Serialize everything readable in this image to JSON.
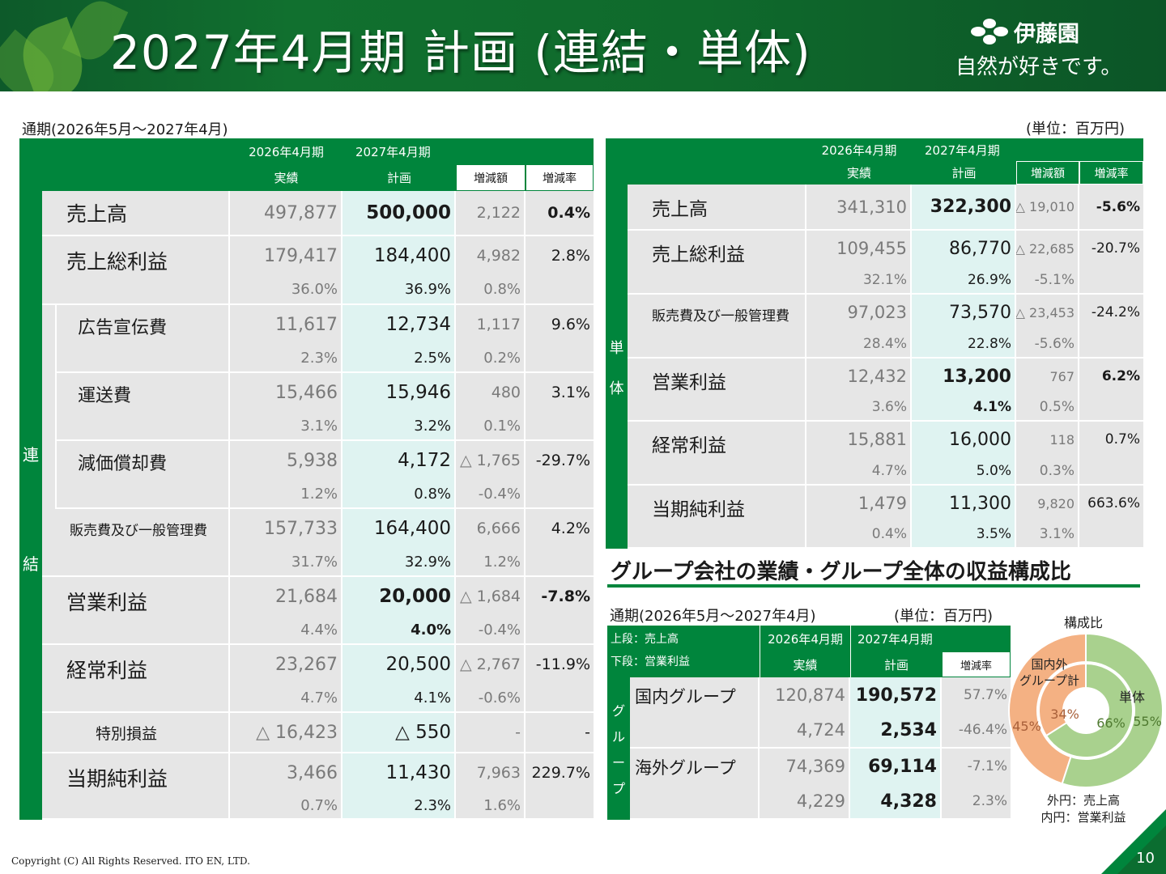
{
  "header": {
    "title": "2027年4月期 計画 (連結・単体)",
    "logo_name": "伊藤園",
    "logo_tagline": "自然が好きです。"
  },
  "left": {
    "period": "通期(2026年5月～2027年4月)",
    "h1a": "2026年4月期",
    "h1b": "実績",
    "h2a": "2027年4月期",
    "h2b": "計画",
    "h3": "増減額",
    "h4": "増減率",
    "side1": "連",
    "side2": "結",
    "rows": [
      {
        "label": "売上高",
        "a": "497,877",
        "p": "500,000",
        "d": "2,122",
        "r": "0.4%",
        "a2": "",
        "p2": "",
        "d2": ""
      },
      {
        "label": "売上総利益",
        "a": "179,417",
        "p": "184,400",
        "d": "4,982",
        "r": "2.8%",
        "a2": "36.0%",
        "p2": "36.9%",
        "d2": "0.8%"
      },
      {
        "label": "広告宣伝費",
        "a": "11,617",
        "p": "12,734",
        "d": "1,117",
        "r": "9.6%",
        "a2": "2.3%",
        "p2": "2.5%",
        "d2": "0.2%"
      },
      {
        "label": "運送費",
        "a": "15,466",
        "p": "15,946",
        "d": "480",
        "r": "3.1%",
        "a2": "3.1%",
        "p2": "3.2%",
        "d2": "0.1%"
      },
      {
        "label": "減価償却費",
        "a": "5,938",
        "p": "4,172",
        "d": "△ 1,765",
        "r": "-29.7%",
        "a2": "1.2%",
        "p2": "0.8%",
        "d2": "-0.4%"
      },
      {
        "label": "販売費及び一般管理費",
        "a": "157,733",
        "p": "164,400",
        "d": "6,666",
        "r": "4.2%",
        "a2": "31.7%",
        "p2": "32.9%",
        "d2": "1.2%"
      },
      {
        "label": "営業利益",
        "a": "21,684",
        "p": "20,000",
        "d": "△ 1,684",
        "r": "-7.8%",
        "a2": "4.4%",
        "p2": "4.0%",
        "d2": "-0.4%"
      },
      {
        "label": "経常利益",
        "a": "23,267",
        "p": "20,500",
        "d": "△ 2,767",
        "r": "-11.9%",
        "a2": "4.7%",
        "p2": "4.1%",
        "d2": "-0.6%"
      },
      {
        "label": "特別損益",
        "a": "△ 16,423",
        "p": "△ 550",
        "d": "-",
        "r": "-",
        "a2": "",
        "p2": "",
        "d2": ""
      },
      {
        "label": "当期純利益",
        "a": "3,466",
        "p": "11,430",
        "d": "7,963",
        "r": "229.7%",
        "a2": "0.7%",
        "p2": "2.3%",
        "d2": "1.6%"
      }
    ]
  },
  "right": {
    "unit": "(単位：百万円)",
    "h1a": "2026年4月期",
    "h1b": "実績",
    "h2a": "2027年4月期",
    "h2b": "計画",
    "h3": "増減額",
    "h4": "増減率",
    "side1": "単",
    "side2": "体",
    "rows": [
      {
        "label": "売上高",
        "a": "341,310",
        "p": "322,300",
        "d": "△ 19,010",
        "r": "-5.6%",
        "a2": "",
        "p2": "",
        "d2": ""
      },
      {
        "label": "売上総利益",
        "a": "109,455",
        "p": "86,770",
        "d": "△ 22,685",
        "r": "-20.7%",
        "a2": "32.1%",
        "p2": "26.9%",
        "d2": "-5.1%"
      },
      {
        "label": "販売費及び一般管理費",
        "a": "97,023",
        "p": "73,570",
        "d": "△ 23,453",
        "r": "-24.2%",
        "a2": "28.4%",
        "p2": "22.8%",
        "d2": "-5.6%"
      },
      {
        "label": "営業利益",
        "a": "12,432",
        "p": "13,200",
        "d": "767",
        "r": "6.2%",
        "a2": "3.6%",
        "p2": "4.1%",
        "d2": "0.5%"
      },
      {
        "label": "経常利益",
        "a": "15,881",
        "p": "16,000",
        "d": "118",
        "r": "0.7%",
        "a2": "4.7%",
        "p2": "5.0%",
        "d2": "0.3%"
      },
      {
        "label": "当期純利益",
        "a": "1,479",
        "p": "11,300",
        "d": "9,820",
        "r": "663.6%",
        "a2": "0.4%",
        "p2": "3.5%",
        "d2": "3.1%"
      }
    ]
  },
  "group": {
    "section_title": "グループ会社の業績・グループ全体の収益構成比",
    "period": "通期(2026年5月～2027年4月)",
    "unit": "(単位：百万円)",
    "hl1": "上段：売上高",
    "hl2": "下段：営業利益",
    "h1a": "2026年4月期",
    "h1b": "実績",
    "h2a": "2027年4月期",
    "h2b": "計画",
    "h3": "増減率",
    "side": [
      "グ",
      "ル",
      "ー",
      "プ"
    ],
    "rows": [
      {
        "label": "国内グループ",
        "a": "120,874",
        "p": "190,572",
        "r": "57.7%",
        "a2": "4,724",
        "p2": "2,534",
        "r2": "-46.4%"
      },
      {
        "label": "海外グループ",
        "a": "74,369",
        "p": "69,114",
        "r": "-7.1%",
        "a2": "4,229",
        "p2": "4,328",
        "r2": "2.3%"
      }
    ]
  },
  "chart_data": {
    "type": "pie",
    "title": "構成比",
    "rings": [
      {
        "name": "外円：売上高",
        "slices": [
          {
            "label": "単体",
            "value": 55
          },
          {
            "label": "国内外グループ計",
            "value": 45
          }
        ]
      },
      {
        "name": "内円：営業利益",
        "slices": [
          {
            "label": "単体",
            "value": 66
          },
          {
            "label": "国内外グループ計",
            "value": 34
          }
        ]
      }
    ],
    "label_single": "単体",
    "label_group": "国内外\nグループ計",
    "legend_outer": "外円：売上高",
    "legend_inner": "内円：営業利益",
    "outer_single_pct": "55%",
    "outer_group_pct": "45%",
    "inner_single_pct": "66%",
    "inner_group_pct": "34%",
    "colors": {
      "single": "#a9d18e",
      "group": "#f4b183"
    }
  },
  "footer": {
    "copyright": "Copyright (C) All Rights Reserved. ITO EN, LTD.",
    "page": "10"
  }
}
